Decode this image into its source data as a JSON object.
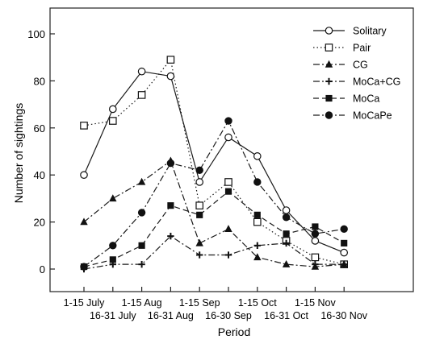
{
  "chart_data": {
    "type": "line",
    "title": "",
    "xlabel": "Period",
    "ylabel": "Number of sightings",
    "ylim": [
      -10,
      110
    ],
    "yticks": [
      0,
      20,
      40,
      60,
      80,
      100
    ],
    "grid": false,
    "legend": "top-right",
    "categories": [
      "1-15 July",
      "16-31 July",
      "1-15 Aug",
      "16-31 Aug",
      "1-15 Sep",
      "16-30 Sep",
      "1-15 Oct",
      "16-31 Oct",
      "1-15 Nov",
      "16-30 Nov"
    ],
    "series": [
      {
        "name": "Solitary",
        "marker": "open-circle",
        "dash": "solid",
        "values": [
          40,
          68,
          84,
          82,
          37,
          56,
          48,
          25,
          12,
          7
        ]
      },
      {
        "name": "Pair",
        "marker": "open-square",
        "dash": "dotted",
        "values": [
          61,
          63,
          74,
          89,
          27,
          37,
          20,
          12,
          5,
          2
        ]
      },
      {
        "name": "CG",
        "marker": "filled-triangle",
        "dash": "dashdot",
        "values": [
          20,
          30,
          37,
          46,
          11,
          17,
          5,
          2,
          1,
          2
        ]
      },
      {
        "name": "MoCa+CG",
        "marker": "plus",
        "dash": "dashdot",
        "values": [
          0,
          2,
          2,
          14,
          6,
          6,
          10,
          11,
          2,
          2
        ]
      },
      {
        "name": "MoCa",
        "marker": "filled-square",
        "dash": "dashed",
        "values": [
          1,
          4,
          10,
          27,
          23,
          33,
          23,
          15,
          18,
          11
        ]
      },
      {
        "name": "MoCaPe",
        "marker": "filled-circle",
        "dash": "dashdot",
        "values": [
          1,
          10,
          24,
          45,
          42,
          63,
          37,
          22,
          15,
          17
        ]
      }
    ]
  }
}
